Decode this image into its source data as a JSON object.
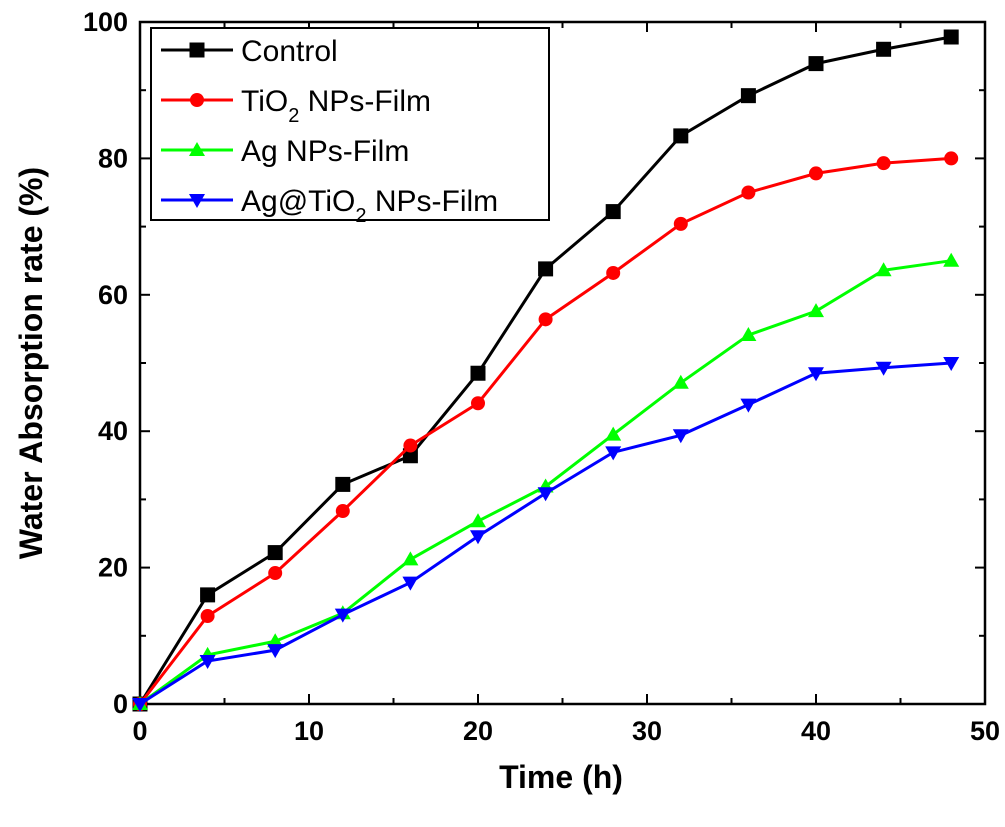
{
  "chart_data": {
    "type": "line",
    "xlabel": "Time (h)",
    "ylabel": "Water Absorption rate (%)",
    "xlim": [
      0,
      50
    ],
    "ylim": [
      0,
      100
    ],
    "xticks": [
      "0",
      "10",
      "20",
      "30",
      "40",
      "50"
    ],
    "yticks": [
      "0",
      "20",
      "40",
      "60",
      "80",
      "100"
    ],
    "grid": false,
    "legend_position": "top-left",
    "x": [
      0,
      4,
      8,
      12,
      16,
      20,
      24,
      28,
      32,
      36,
      40,
      44,
      48
    ],
    "series": [
      {
        "name": "Control",
        "name_parts": [
          {
            "t": "Control"
          }
        ],
        "color": "#000000",
        "marker": "square",
        "values": [
          0,
          16.0,
          22.2,
          32.2,
          36.4,
          48.5,
          63.8,
          72.2,
          83.3,
          89.2,
          93.9,
          96.0,
          97.8
        ]
      },
      {
        "name": "TiO2 NPs-Film",
        "name_parts": [
          {
            "t": "TiO"
          },
          {
            "t": "2",
            "sub": true
          },
          {
            "t": " NPs-Film"
          }
        ],
        "color": "#ff0000",
        "marker": "circle",
        "values": [
          0,
          12.9,
          19.2,
          28.3,
          37.9,
          44.1,
          56.4,
          63.2,
          70.4,
          75.0,
          77.8,
          79.3,
          80.0
        ]
      },
      {
        "name": "Ag NPs-Film",
        "name_parts": [
          {
            "t": "Ag NPs-Film"
          }
        ],
        "color": "#00ff00",
        "marker": "triangle-up",
        "values": [
          0,
          7.2,
          9.2,
          13.3,
          21.2,
          26.8,
          31.9,
          39.5,
          47.1,
          54.1,
          57.6,
          63.6,
          65.0
        ]
      },
      {
        "name": "Ag@TiO2 NPs-Film",
        "name_parts": [
          {
            "t": "Ag@TiO"
          },
          {
            "t": "2",
            "sub": true
          },
          {
            "t": " NPs-Film"
          }
        ],
        "color": "#0000ff",
        "marker": "triangle-down",
        "values": [
          0,
          6.3,
          7.9,
          13.1,
          17.8,
          24.6,
          30.9,
          36.9,
          39.4,
          43.9,
          48.5,
          49.3,
          50.0
        ]
      }
    ]
  }
}
